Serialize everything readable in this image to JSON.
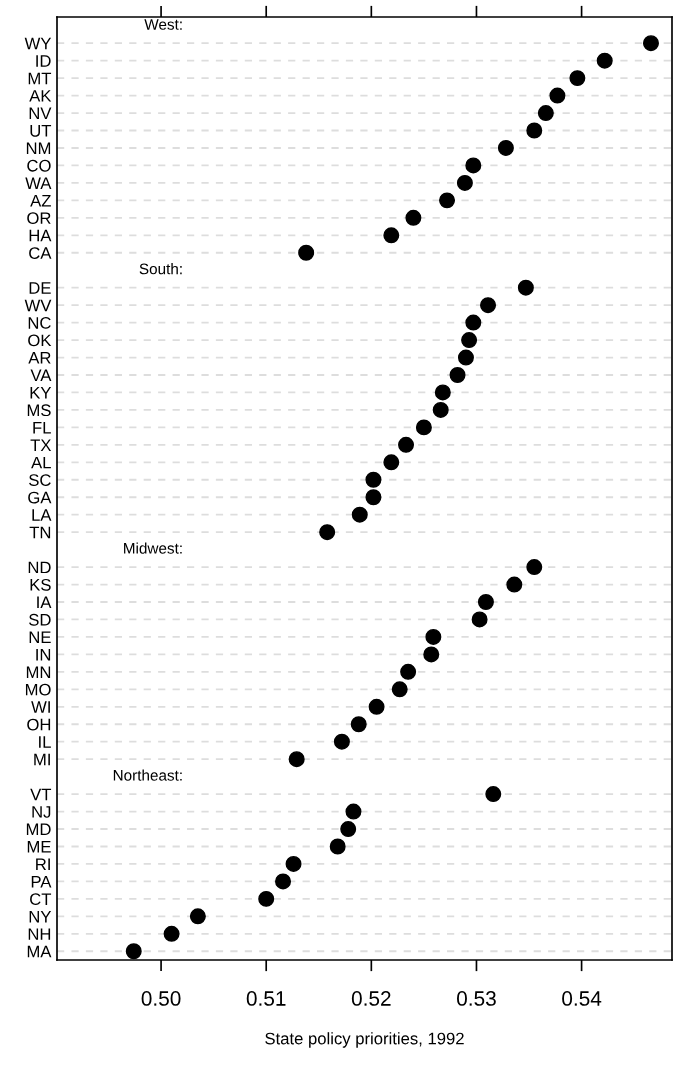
{
  "chart_data": {
    "type": "scatter",
    "orientation": "horizontal",
    "xlabel": "State policy priorities, 1992",
    "categories": [
      null,
      "WY",
      "ID",
      "MT",
      "AK",
      "NV",
      "UT",
      "NM",
      "CO",
      "WA",
      "AZ",
      "OR",
      "HA",
      "CA",
      null,
      "DE",
      "WV",
      "NC",
      "OK",
      "AR",
      "VA",
      "KY",
      "MS",
      "FL",
      "TX",
      "AL",
      "SC",
      "GA",
      "LA",
      "TN",
      null,
      "ND",
      "KS",
      "IA",
      "SD",
      "NE",
      "IN",
      "MN",
      "MO",
      "WI",
      "OH",
      "IL",
      "MI",
      null,
      "VT",
      "NJ",
      "MD",
      "ME",
      "RI",
      "PA",
      "CT",
      "NY",
      "NH",
      "MA"
    ],
    "series": [
      {
        "color": "#000000",
        "values": [
          null,
          0.5466,
          0.5422,
          0.5396,
          0.5377,
          0.5366,
          0.5355,
          0.5328,
          0.5297,
          0.5289,
          0.5272,
          0.524,
          0.5219,
          0.5138,
          null,
          0.5347,
          0.5311,
          0.5297,
          0.5293,
          0.529,
          0.5282,
          0.5268,
          0.5266,
          0.525,
          0.5233,
          0.5219,
          0.5202,
          0.5202,
          0.5189,
          0.5158,
          null,
          0.5355,
          0.5336,
          0.5309,
          0.5303,
          0.5259,
          0.5257,
          0.5235,
          0.5227,
          0.5205,
          0.5188,
          0.5172,
          0.5129,
          null,
          0.5316,
          0.5183,
          0.5178,
          0.5168,
          0.5126,
          0.5116,
          0.51,
          0.5035,
          0.501,
          0.4974
        ]
      }
    ],
    "annotations": [
      "West:",
      "South:",
      "Midwest:",
      "Northeast:"
    ],
    "xlim": [
      0.4901,
      0.5486
    ],
    "xticks": [
      {
        "value": 0.5,
        "label": "0.50"
      },
      {
        "value": 0.51,
        "label": "0.51"
      },
      {
        "value": 0.52,
        "label": "0.52"
      },
      {
        "value": 0.53,
        "label": "0.53"
      },
      {
        "value": 0.54,
        "label": "0.54"
      }
    ],
    "grid": "y",
    "marker": "circle",
    "legend": false
  }
}
